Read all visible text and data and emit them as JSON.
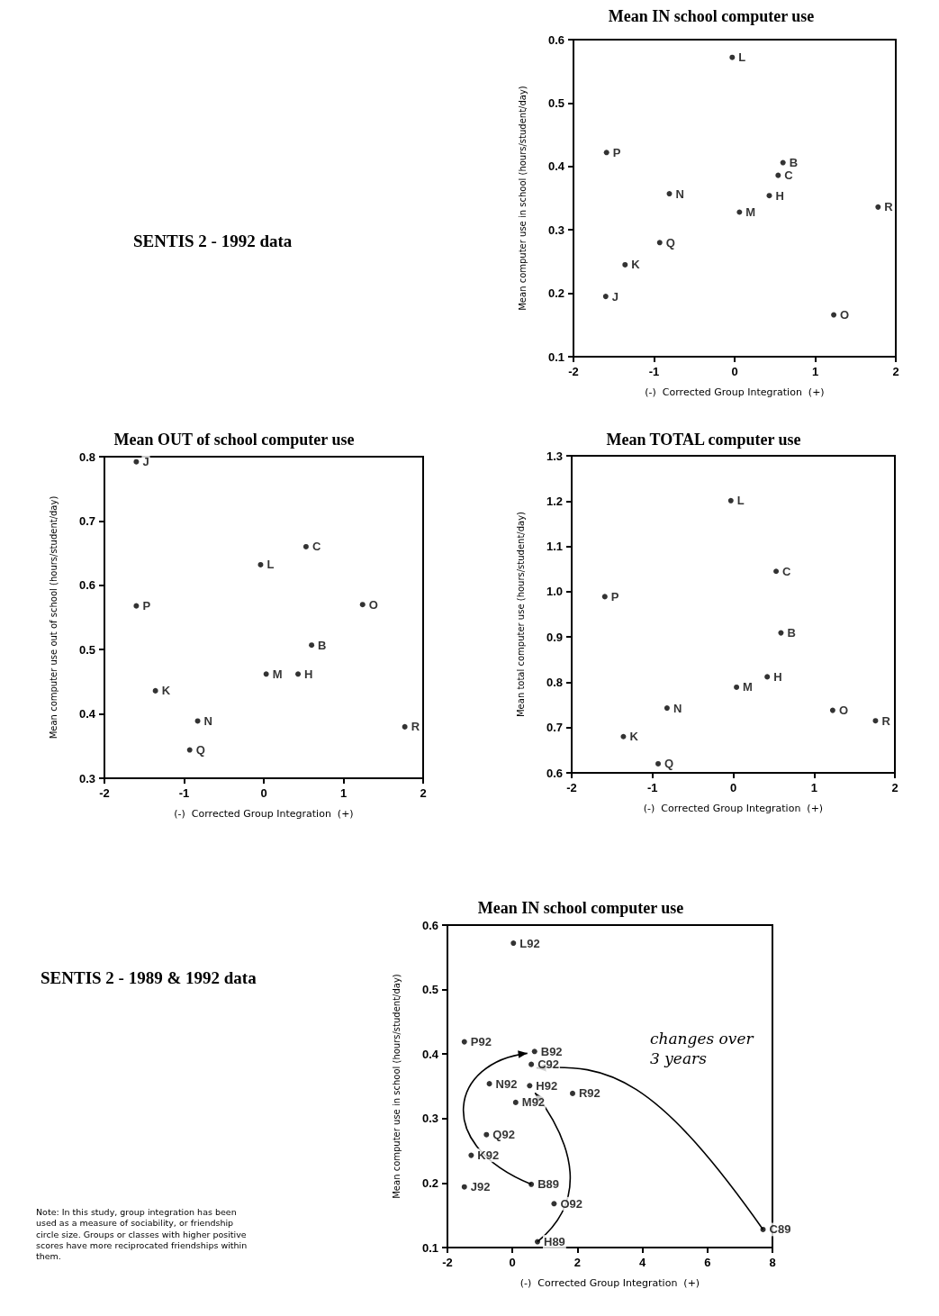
{
  "chart_data": [
    {
      "type": "scatter",
      "title": "Mean IN school computer use",
      "xlabel": "(-)  Corrected Group Integration  (+)",
      "ylabel": "Mean computer use in school (hours/student/day)",
      "annotations": [
        "SENTIS 2 - 1992 data"
      ],
      "x": [
        -0.03,
        -1.59,
        0.6,
        0.54,
        -0.81,
        0.43,
        0.06,
        1.78,
        -0.93,
        -1.36,
        -1.6,
        1.23
      ],
      "series": [
        {
          "color": "#000000",
          "values": [
            0.572,
            0.422,
            0.406,
            0.386,
            0.357,
            0.354,
            0.328,
            0.336,
            0.28,
            0.245,
            0.195,
            0.166
          ],
          "value_labels": [
            "L",
            "P",
            "B",
            "C",
            "N",
            "H",
            "M",
            "R",
            "Q",
            "K",
            "J",
            "O"
          ]
        }
      ],
      "xlim": [
        -2,
        2
      ],
      "xticks": [
        -2,
        -1,
        0,
        1,
        2
      ],
      "ylim": [
        0.1,
        0.6
      ],
      "yticks": [
        0.1,
        0.2,
        0.3,
        0.4,
        0.5,
        0.6
      ],
      "marker": "circle",
      "grid": false
    },
    {
      "type": "scatter",
      "title": "Mean OUT of school computer use",
      "xlabel": "(-)  Corrected Group Integration  (+)",
      "ylabel": "Mean computer use out of school (hours/student/day)",
      "x": [
        -1.6,
        0.53,
        -0.04,
        -1.6,
        1.24,
        0.6,
        0.03,
        0.43,
        -1.36,
        -0.83,
        -0.93,
        1.77
      ],
      "series": [
        {
          "color": "#000000",
          "values": [
            0.792,
            0.66,
            0.632,
            0.568,
            0.57,
            0.507,
            0.462,
            0.462,
            0.436,
            0.389,
            0.344,
            0.38
          ],
          "value_labels": [
            "J",
            "C",
            "L",
            "P",
            "O",
            "B",
            "M",
            "H",
            "K",
            "N",
            "Q",
            "R"
          ]
        }
      ],
      "xlim": [
        -2,
        2
      ],
      "xticks": [
        -2,
        -1,
        0,
        1,
        2
      ],
      "ylim": [
        0.3,
        0.8
      ],
      "yticks": [
        0.3,
        0.4,
        0.5,
        0.6,
        0.7,
        0.8
      ],
      "marker": "circle",
      "grid": false
    },
    {
      "type": "scatter",
      "title": "Mean TOTAL computer use",
      "xlabel": "(-)  Corrected Group Integration  (+)",
      "ylabel": "Mean total computer use (hours/student/day)",
      "x": [
        -0.03,
        0.53,
        -1.59,
        0.59,
        0.42,
        0.04,
        -0.82,
        1.23,
        1.76,
        -1.36,
        -0.93
      ],
      "series": [
        {
          "color": "#000000",
          "values": [
            1.201,
            1.045,
            0.989,
            0.909,
            0.812,
            0.789,
            0.743,
            0.738,
            0.715,
            0.68,
            0.62
          ],
          "value_labels": [
            "L",
            "C",
            "P",
            "B",
            "H",
            "M",
            "N",
            "O",
            "R",
            "K",
            "Q"
          ]
        }
      ],
      "xlim": [
        -2,
        2
      ],
      "xticks": [
        -2,
        -1,
        0,
        1,
        2
      ],
      "ylim": [
        0.6,
        1.3
      ],
      "yticks": [
        0.6,
        0.7,
        0.8,
        0.9,
        {
          "value": 1,
          "label": "1.0"
        },
        1.1,
        1.2,
        1.3
      ],
      "marker": "circle",
      "grid": false
    },
    {
      "type": "scatter",
      "title": "Mean IN school computer use",
      "xlabel": "(-)  Corrected Group Integration  (+)",
      "ylabel": "Mean computer use in school (hours/student/day)",
      "annotations": [
        "SENTIS 2 - 1989 & 1992 data",
        "Note: In this study, group integration has been used as a measure of sociability, or friendship circle size. Groups or classes with higher positive scores have more reciprocated friendships within them.",
        "changes over 3 years"
      ],
      "x": [
        0.03,
        -1.48,
        0.68,
        0.58,
        -0.71,
        0.53,
        1.85,
        0.1,
        -0.8,
        -1.27,
        -1.48,
        0.58,
        1.28,
        7.71,
        0.77
      ],
      "series": [
        {
          "color": "#000000",
          "values": [
            0.572,
            0.419,
            0.404,
            0.384,
            0.354,
            0.351,
            0.339,
            0.325,
            0.275,
            0.243,
            0.194,
            0.198,
            0.168,
            0.128,
            0.109
          ],
          "value_labels": [
            "L92",
            "P92",
            "B92",
            "C92",
            "N92",
            "H92",
            "R92",
            "M92",
            "Q92",
            "K92",
            "J92",
            "B89",
            "O92",
            "C89",
            "H89"
          ]
        }
      ],
      "xlim": [
        -2,
        8
      ],
      "xticks": [
        -2,
        0,
        2,
        4,
        6,
        8
      ],
      "ylim": [
        0.1,
        0.6
      ],
      "yticks": [
        0.1,
        0.2,
        0.3,
        0.4,
        0.5,
        0.6
      ],
      "marker": "circle",
      "grid": false
    }
  ]
}
